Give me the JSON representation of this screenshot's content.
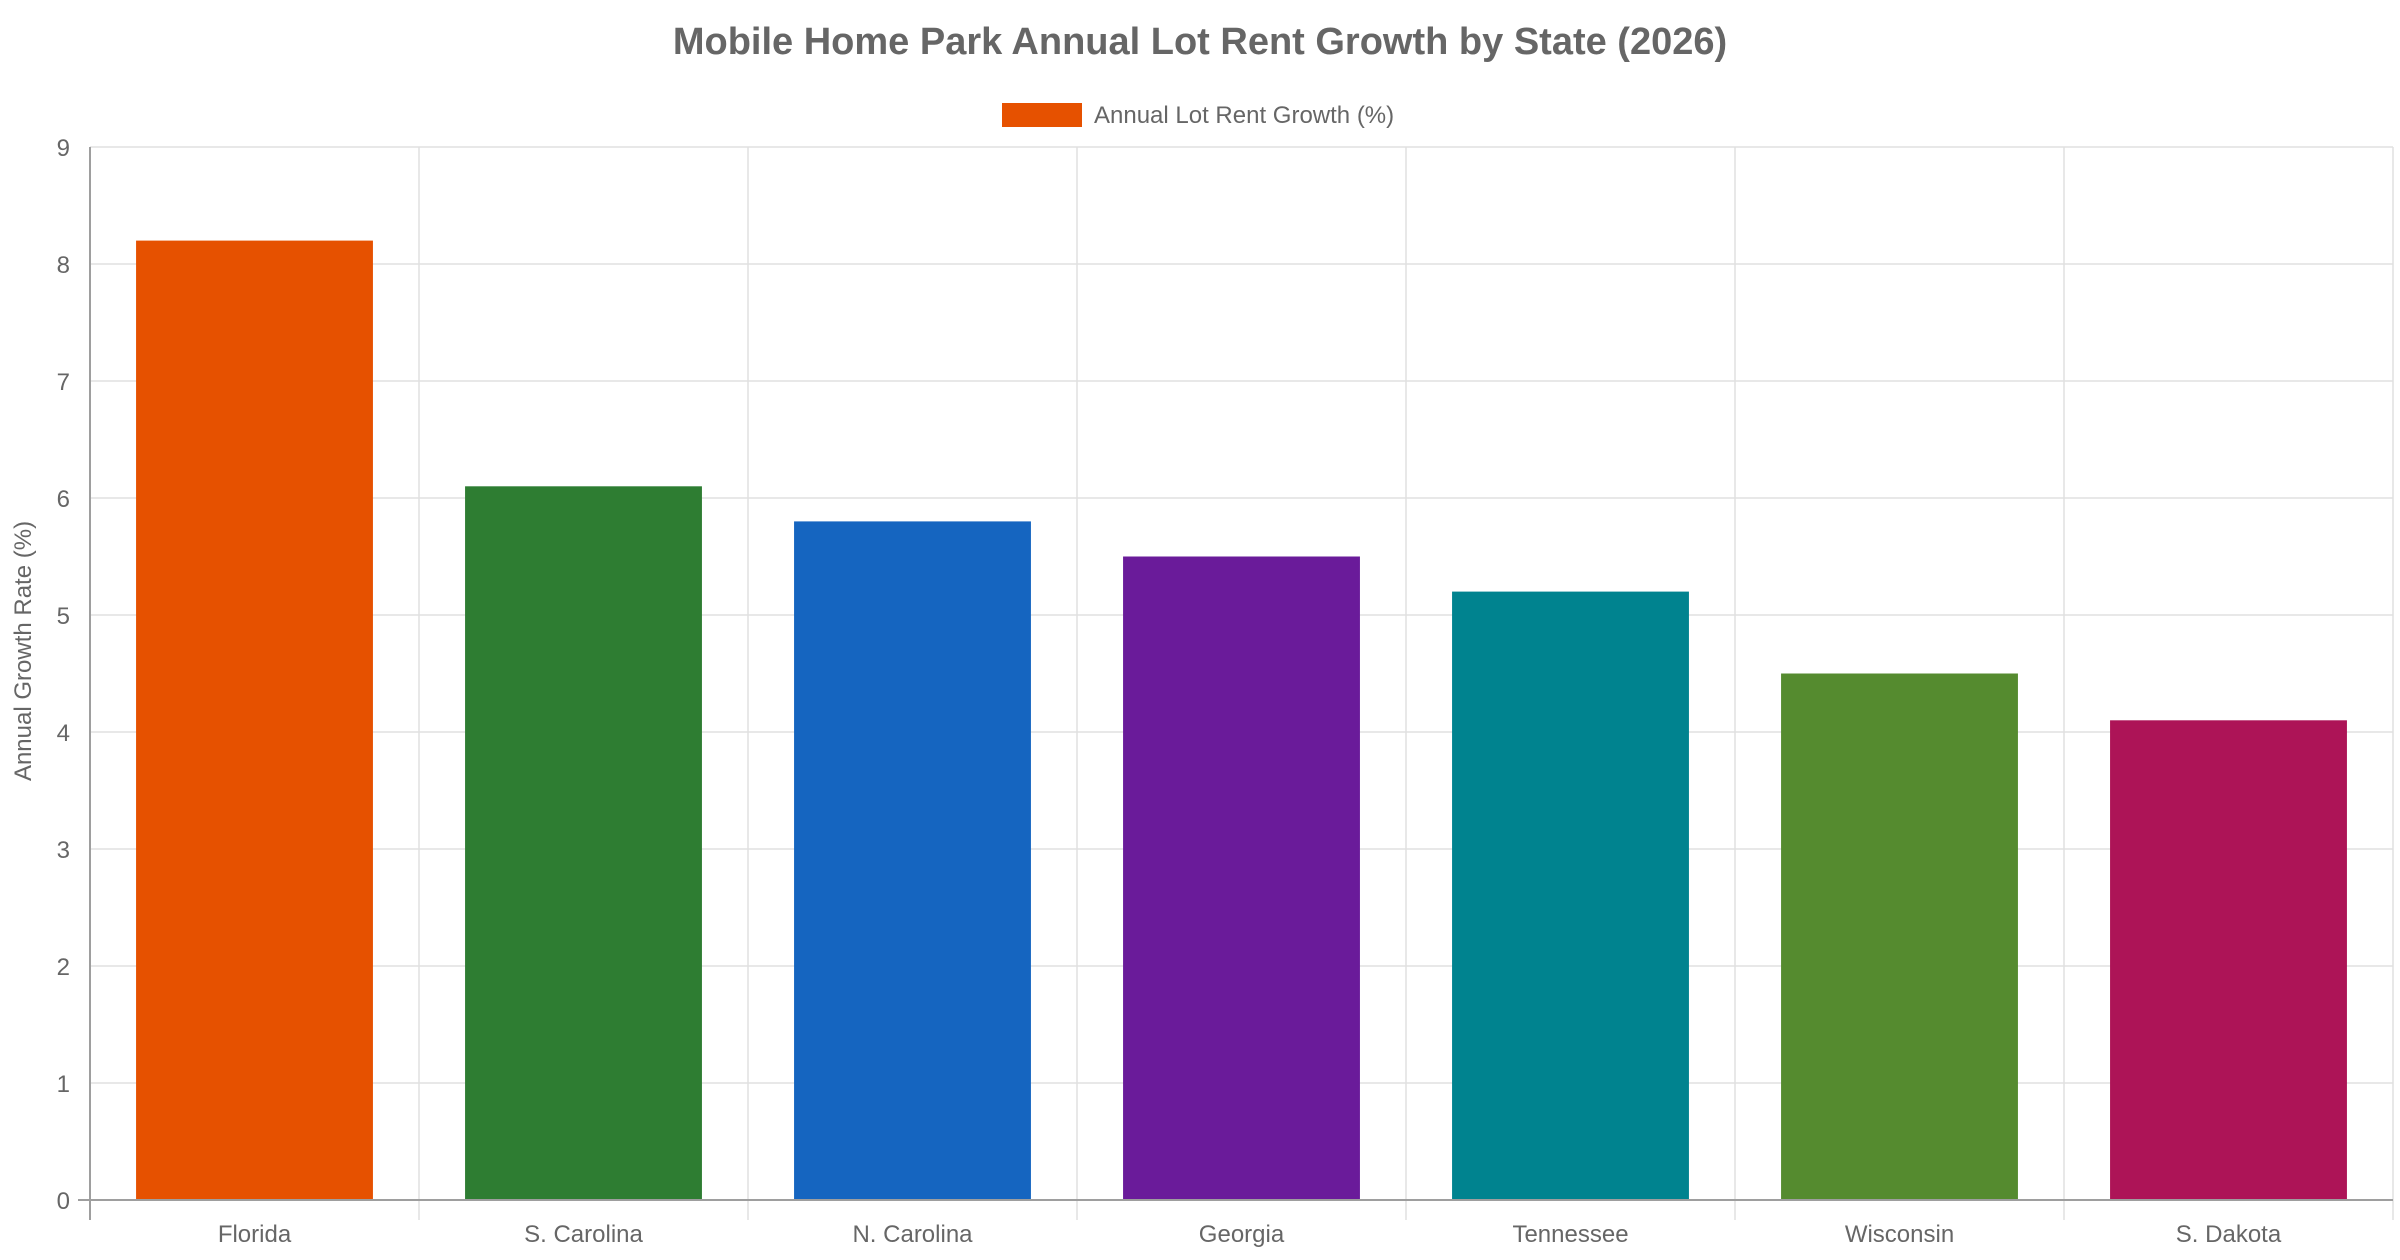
{
  "chart_data": {
    "type": "bar",
    "title": "Mobile Home Park Annual Lot Rent Growth by State (2026)",
    "categories": [
      "Florida",
      "S. Carolina",
      "N. Carolina",
      "Georgia",
      "Tennessee",
      "Wisconsin",
      "S. Dakota"
    ],
    "series": [
      {
        "name": "Annual Lot Rent Growth (%)",
        "values": [
          8.2,
          6.1,
          5.8,
          5.5,
          5.2,
          4.5,
          4.1
        ]
      }
    ],
    "bar_colors": [
      "#e65100",
      "#2e7d32",
      "#1565c0",
      "#6a1b9a",
      "#00838f",
      "#558b2f",
      "#ad1457"
    ],
    "legend_color": "#e65100",
    "xlabel": "",
    "ylabel": "Annual Growth Rate (%)",
    "ylim": [
      0,
      9
    ],
    "yticks": [
      "0",
      "1",
      "2",
      "3",
      "4",
      "5",
      "6",
      "7",
      "8",
      "9"
    ],
    "grid": true,
    "legend_position": "top-center"
  }
}
